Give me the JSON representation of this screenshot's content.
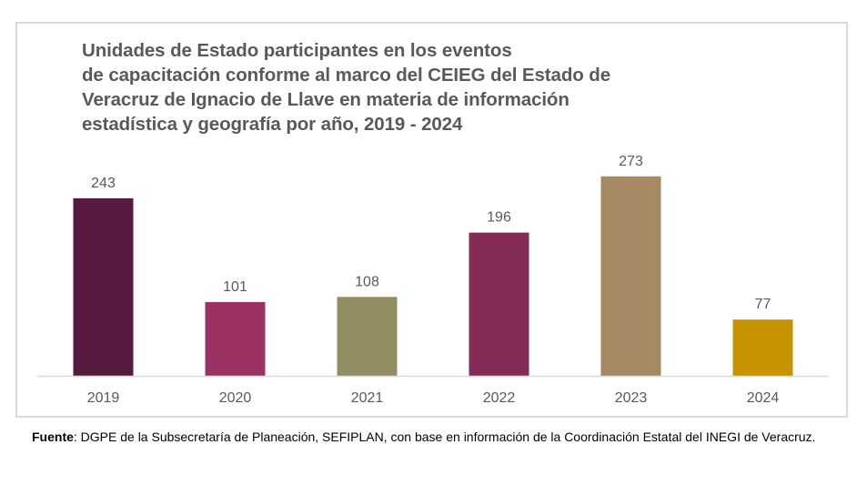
{
  "chart_data": {
    "type": "bar",
    "title_lines": [
      "Unidades de Estado participantes en los eventos",
      "de capacitación conforme al marco del CEIEG del Estado de",
      "Veracruz de Ignacio de Llave en materia de información",
      "estadística y geografía por año, 2019 - 2024"
    ],
    "title": "Unidades de Estado participantes en los eventos de capacitación conforme al marco del CEIEG del Estado de Veracruz de Ignacio de Llave en materia de información estadística y geografía por año, 2019 - 2024",
    "categories": [
      "2019",
      "2020",
      "2021",
      "2022",
      "2023",
      "2024"
    ],
    "values": [
      243,
      101,
      108,
      196,
      273,
      77
    ],
    "data_labels": [
      "243",
      "101",
      "108",
      "196",
      "273",
      "77"
    ],
    "bar_colors": [
      "#561a40",
      "#9a3363",
      "#928d61",
      "#852b57",
      "#a58963",
      "#c89300"
    ],
    "xlabel": "",
    "ylabel": "",
    "ylim": [
      0,
      340
    ],
    "grid": false,
    "legend": "none",
    "show_y_axis": false
  },
  "source": {
    "label": "Fuente",
    "separator": ": ",
    "text": "DGPE de la Subsecretaría de Planeación, SEFIPLAN, con base en información de la Coordinación Estatal del INEGI de Veracruz."
  },
  "colors": {
    "title_text": "#595959",
    "axis_text": "#595959",
    "axis_line": "#d9d9d9",
    "frame_border": "#d9d9d9"
  }
}
